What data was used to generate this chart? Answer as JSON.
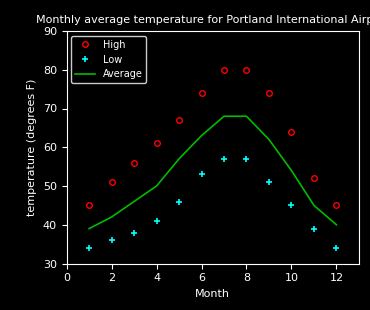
{
  "title": "Monthly average temperature for Portland International Airport",
  "xlabel": "Month",
  "ylabel": "temperature (degrees F)",
  "xlim": [
    0,
    13
  ],
  "ylim": [
    30,
    90
  ],
  "xticks": [
    0,
    2,
    4,
    6,
    8,
    10,
    12
  ],
  "yticks": [
    30,
    40,
    50,
    60,
    70,
    80,
    90
  ],
  "months": [
    1,
    2,
    3,
    4,
    5,
    6,
    7,
    8,
    9,
    10,
    11,
    12
  ],
  "high": [
    45,
    51,
    56,
    61,
    67,
    74,
    80,
    80,
    74,
    64,
    52,
    45
  ],
  "low": [
    34,
    36,
    38,
    41,
    46,
    53,
    57,
    57,
    51,
    45,
    39,
    34
  ],
  "average": [
    39,
    42,
    46,
    50,
    57,
    63,
    68,
    68,
    62,
    54,
    45,
    40
  ],
  "high_color": "#ff0000",
  "low_color": "#00ffff",
  "avg_color": "#00bb00",
  "bg_color": "#000000",
  "text_color": "#ffffff",
  "legend_bg": "#000000",
  "legend_edge": "#ffffff",
  "title_fontsize": 8,
  "label_fontsize": 8,
  "tick_fontsize": 8
}
